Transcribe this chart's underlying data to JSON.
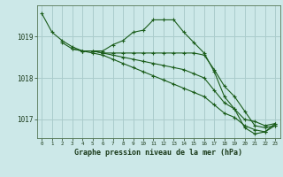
{
  "title": "Graphe pression niveau de la mer (hPa)",
  "background_color": "#cce8e8",
  "grid_color": "#aacccc",
  "line_color": "#1a5c1a",
  "x_labels": [
    "0",
    "1",
    "2",
    "3",
    "4",
    "5",
    "6",
    "7",
    "8",
    "9",
    "10",
    "11",
    "12",
    "13",
    "14",
    "15",
    "16",
    "17",
    "18",
    "19",
    "20",
    "21",
    "22",
    "23"
  ],
  "ylim": [
    1016.55,
    1019.75
  ],
  "yticks": [
    1017,
    1018,
    1019
  ],
  "series": [
    [
      1019.55,
      1019.1,
      1018.9,
      1018.75,
      1018.65,
      1018.65,
      1018.65,
      1018.8,
      1018.9,
      1019.1,
      1019.15,
      1019.4,
      1019.4,
      1019.4,
      1019.1,
      1018.85,
      1018.6,
      1018.15,
      1017.55,
      1017.25,
      1016.8,
      1016.65,
      1016.7,
      1016.9
    ],
    [
      null,
      null,
      1018.85,
      1018.7,
      1018.65,
      1018.65,
      1018.6,
      1018.6,
      1018.6,
      1018.6,
      1018.6,
      1018.6,
      1018.6,
      1018.6,
      1018.6,
      1018.6,
      1018.55,
      1018.2,
      1017.8,
      1017.55,
      1017.2,
      1016.85,
      1016.8,
      1016.85
    ],
    [
      null,
      null,
      null,
      1018.7,
      1018.65,
      1018.65,
      1018.6,
      1018.55,
      1018.5,
      1018.45,
      1018.4,
      1018.35,
      1018.3,
      1018.25,
      1018.2,
      1018.1,
      1018.0,
      1017.7,
      1017.4,
      1017.25,
      1017.0,
      1016.95,
      1016.85,
      1016.9
    ],
    [
      null,
      null,
      null,
      null,
      1018.65,
      1018.6,
      1018.55,
      1018.45,
      1018.35,
      1018.25,
      1018.15,
      1018.05,
      1017.95,
      1017.85,
      1017.75,
      1017.65,
      1017.55,
      1017.35,
      1017.15,
      1017.05,
      1016.85,
      1016.75,
      1016.7,
      1016.85
    ]
  ]
}
